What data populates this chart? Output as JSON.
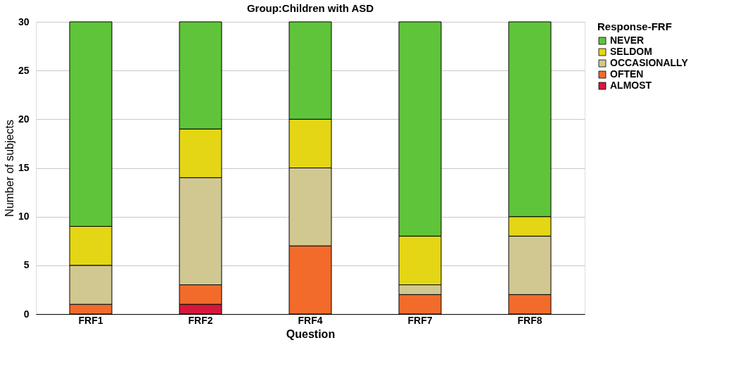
{
  "chart_data": {
    "type": "bar",
    "stacked": true,
    "title": "Group:Children with ASD",
    "xlabel": "Question",
    "ylabel": "Number of subjects",
    "legend_title": "Response-FRF",
    "legend": "top right",
    "grid": "y",
    "categories": [
      "FRF1",
      "FRF2",
      "FRF4",
      "FRF7",
      "FRF8"
    ],
    "ylim": [
      0,
      30
    ],
    "yticks": [
      0,
      5,
      10,
      15,
      20,
      25,
      30
    ],
    "series": [
      {
        "name": "ALMOST",
        "color": "#d8163c",
        "values": [
          0,
          1,
          0,
          0,
          0
        ]
      },
      {
        "name": "OFTEN",
        "color": "#f26b2a",
        "values": [
          1,
          2,
          7,
          2,
          2
        ]
      },
      {
        "name": "OCCASIONALLY",
        "color": "#d0c890",
        "values": [
          4,
          11,
          8,
          1,
          6
        ]
      },
      {
        "name": "SELDOM",
        "color": "#e4d614",
        "values": [
          4,
          5,
          5,
          5,
          2
        ]
      },
      {
        "name": "NEVER",
        "color": "#5fc43a",
        "values": [
          21,
          11,
          10,
          22,
          20
        ]
      }
    ]
  }
}
